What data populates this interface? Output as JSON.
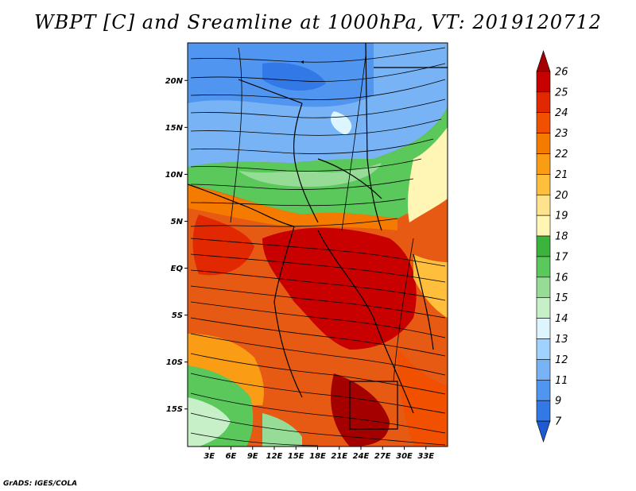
{
  "title": "WBPT [C] and Sreamline at 1000hPa, VT: 2019120712",
  "credit": "GrADS: IGES/COLA",
  "map": {
    "lon_range": [
      0,
      36
    ],
    "lat_range": [
      -19,
      24
    ],
    "lat_ticks": [
      {
        "value": 20,
        "label": "20N"
      },
      {
        "value": 15,
        "label": "15N"
      },
      {
        "value": 10,
        "label": "10N"
      },
      {
        "value": 5,
        "label": "5N"
      },
      {
        "value": 0,
        "label": "EQ"
      },
      {
        "value": -5,
        "label": "5S"
      },
      {
        "value": -10,
        "label": "10S"
      },
      {
        "value": -15,
        "label": "15S"
      }
    ],
    "lon_ticks": [
      {
        "value": 3,
        "label": "3E"
      },
      {
        "value": 6,
        "label": "6E"
      },
      {
        "value": 9,
        "label": "9E"
      },
      {
        "value": 12,
        "label": "12E"
      },
      {
        "value": 15,
        "label": "15E"
      },
      {
        "value": 18,
        "label": "18E"
      },
      {
        "value": 21,
        "label": "21E"
      },
      {
        "value": 24,
        "label": "24E"
      },
      {
        "value": 27,
        "label": "27E"
      },
      {
        "value": 30,
        "label": "30E"
      },
      {
        "value": 33,
        "label": "33E"
      }
    ]
  },
  "colorbar": {
    "levels": [
      "26",
      "25",
      "24",
      "23",
      "22",
      "21",
      "20",
      "19",
      "18",
      "17",
      "16",
      "15",
      "14",
      "13",
      "12",
      "11",
      "9",
      "7"
    ],
    "colors": [
      "#a50000",
      "#c80000",
      "#e12800",
      "#f05000",
      "#f57a00",
      "#fa9c14",
      "#ffbe3c",
      "#ffe28c",
      "#fff5b4",
      "#3cb43c",
      "#5ac85a",
      "#96dc96",
      "#c8f0c8",
      "#dcf5ff",
      "#a0d2ff",
      "#78b4f5",
      "#5096f0",
      "#3278e6",
      "#1e5ad2"
    ]
  }
}
